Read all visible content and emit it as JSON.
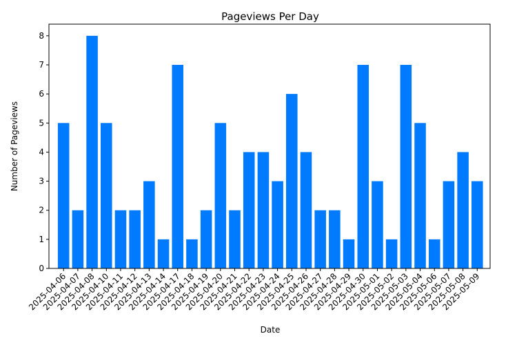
{
  "chart_data": {
    "type": "bar",
    "title": "Pageviews Per Day",
    "xlabel": "Date",
    "ylabel": "Number of Pageviews",
    "categories": [
      "2025-04-06",
      "2025-04-07",
      "2025-04-08",
      "2025-04-10",
      "2025-04-11",
      "2025-04-12",
      "2025-04-13",
      "2025-04-14",
      "2025-04-17",
      "2025-04-18",
      "2025-04-19",
      "2025-04-20",
      "2025-04-21",
      "2025-04-22",
      "2025-04-23",
      "2025-04-24",
      "2025-04-25",
      "2025-04-26",
      "2025-04-27",
      "2025-04-28",
      "2025-04-29",
      "2025-04-30",
      "2025-05-01",
      "2025-05-02",
      "2025-05-03",
      "2025-05-04",
      "2025-05-06",
      "2025-05-07",
      "2025-05-08",
      "2025-05-09"
    ],
    "values": [
      5,
      2,
      8,
      5,
      2,
      2,
      3,
      1,
      7,
      1,
      2,
      5,
      2,
      4,
      4,
      3,
      6,
      4,
      2,
      2,
      1,
      7,
      3,
      1,
      7,
      5,
      1,
      3,
      4,
      3
    ],
    "ylim": [
      0,
      8.4
    ],
    "yticks": [
      0,
      1,
      2,
      3,
      4,
      5,
      6,
      7,
      8
    ],
    "bar_color": "#007bff",
    "grid": false,
    "legend": "none"
  }
}
